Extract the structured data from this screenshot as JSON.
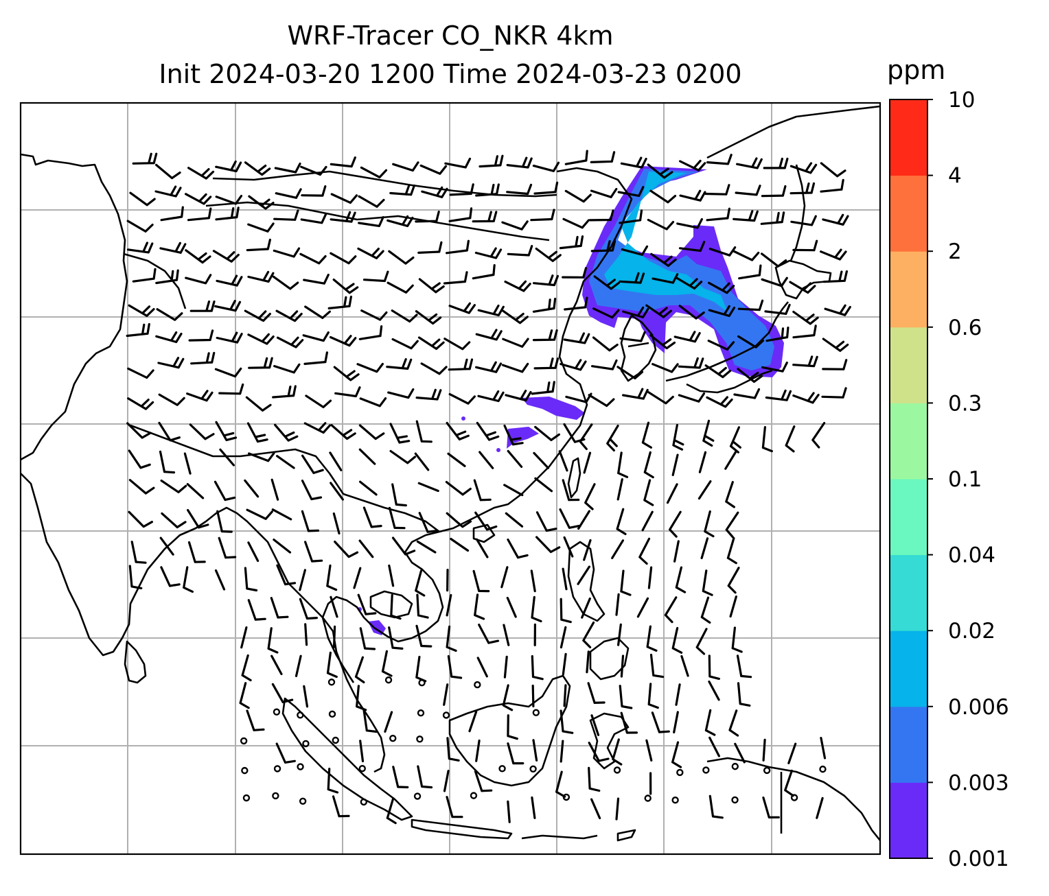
{
  "title": {
    "line1": "WRF-Tracer CO_NKR 4km",
    "line2": "Init 2024-03-20 1200 Time 2024-03-23 0200"
  },
  "colorbar": {
    "unit": "ppm",
    "levels": [
      "0.001",
      "0.003",
      "0.006",
      "0.02",
      "0.04",
      "0.1",
      "0.3",
      "0.6",
      "2",
      "4",
      "10"
    ],
    "colors": [
      "#6a2bf8",
      "#3476f2",
      "#06b3ea",
      "#35dbd4",
      "#6af8c0",
      "#9cf8a0",
      "#cfe28a",
      "#fdb061",
      "#fe713c",
      "#ff2b18"
    ]
  },
  "map": {
    "gridlines": true,
    "coastline_color": "#000000",
    "plume_regions": [
      {
        "name": "northeast-asia-plume",
        "max_level": "0.02"
      },
      {
        "name": "central-china-patch",
        "max_level": "0.003"
      },
      {
        "name": "indochina-patch",
        "max_level": "0.003"
      }
    ]
  }
}
